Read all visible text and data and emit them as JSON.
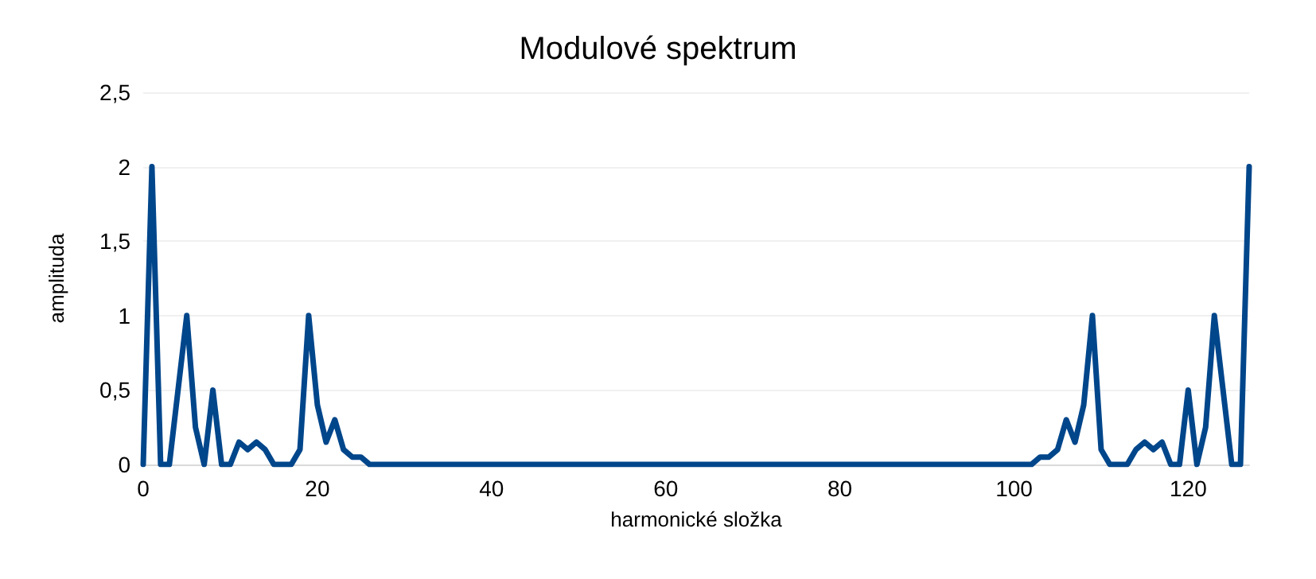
{
  "chart_data": {
    "type": "line",
    "title": "Modulové spektrum",
    "xlabel": "harmonické složka",
    "ylabel": "amplituda",
    "x": [
      0,
      1,
      2,
      3,
      4,
      5,
      6,
      7,
      8,
      9,
      10,
      11,
      12,
      13,
      14,
      15,
      16,
      17,
      18,
      19,
      20,
      21,
      22,
      23,
      24,
      25,
      26,
      27,
      28,
      29,
      30,
      31,
      32,
      33,
      34,
      35,
      36,
      37,
      38,
      39,
      40,
      41,
      42,
      43,
      44,
      45,
      46,
      47,
      48,
      49,
      50,
      51,
      52,
      53,
      54,
      55,
      56,
      57,
      58,
      59,
      60,
      61,
      62,
      63,
      64,
      65,
      66,
      67,
      68,
      69,
      70,
      71,
      72,
      73,
      74,
      75,
      76,
      77,
      78,
      79,
      80,
      81,
      82,
      83,
      84,
      85,
      86,
      87,
      88,
      89,
      90,
      91,
      92,
      93,
      94,
      95,
      96,
      97,
      98,
      99,
      100,
      101,
      102,
      103,
      104,
      105,
      106,
      107,
      108,
      109,
      110,
      111,
      112,
      113,
      114,
      115,
      116,
      117,
      118,
      119,
      120,
      121,
      122,
      123,
      124,
      125,
      126,
      127
    ],
    "series": [
      {
        "color": "#00468b",
        "values": [
          0,
          2,
          0,
          0,
          0.5,
          1,
          0.25,
          0,
          0.5,
          0,
          0,
          0.15,
          0.1,
          0.15,
          0.1,
          0,
          0,
          0,
          0.1,
          1,
          0.4,
          0.15,
          0.3,
          0.1,
          0.05,
          0.05,
          0,
          0,
          0,
          0,
          0,
          0,
          0,
          0,
          0,
          0,
          0,
          0,
          0,
          0,
          0,
          0,
          0,
          0,
          0,
          0,
          0,
          0,
          0,
          0,
          0,
          0,
          0,
          0,
          0,
          0,
          0,
          0,
          0,
          0,
          0,
          0,
          0,
          0,
          0,
          0,
          0,
          0,
          0,
          0,
          0,
          0,
          0,
          0,
          0,
          0,
          0,
          0,
          0,
          0,
          0,
          0,
          0,
          0,
          0,
          0,
          0,
          0,
          0,
          0,
          0,
          0,
          0,
          0,
          0,
          0,
          0,
          0,
          0,
          0,
          0,
          0,
          0,
          0.05,
          0.05,
          0.1,
          0.3,
          0.15,
          0.4,
          1,
          0.1,
          0,
          0,
          0,
          0.1,
          0.15,
          0.1,
          0.15,
          0,
          0,
          0.5,
          0,
          0.25,
          1,
          0.5,
          0,
          0,
          2
        ]
      }
    ],
    "xlim": [
      0,
      127
    ],
    "xticks": [
      0,
      20,
      40,
      60,
      80,
      100,
      120
    ],
    "ylim": [
      0,
      2.5
    ],
    "yticks": [
      0,
      {
        "value": 0.5,
        "label": "0,5"
      },
      1,
      {
        "value": 1.5,
        "label": "1,5"
      },
      2,
      {
        "value": 2.5,
        "label": "2,5"
      }
    ],
    "grid": "y",
    "marker": "none",
    "line_style": "solid"
  }
}
